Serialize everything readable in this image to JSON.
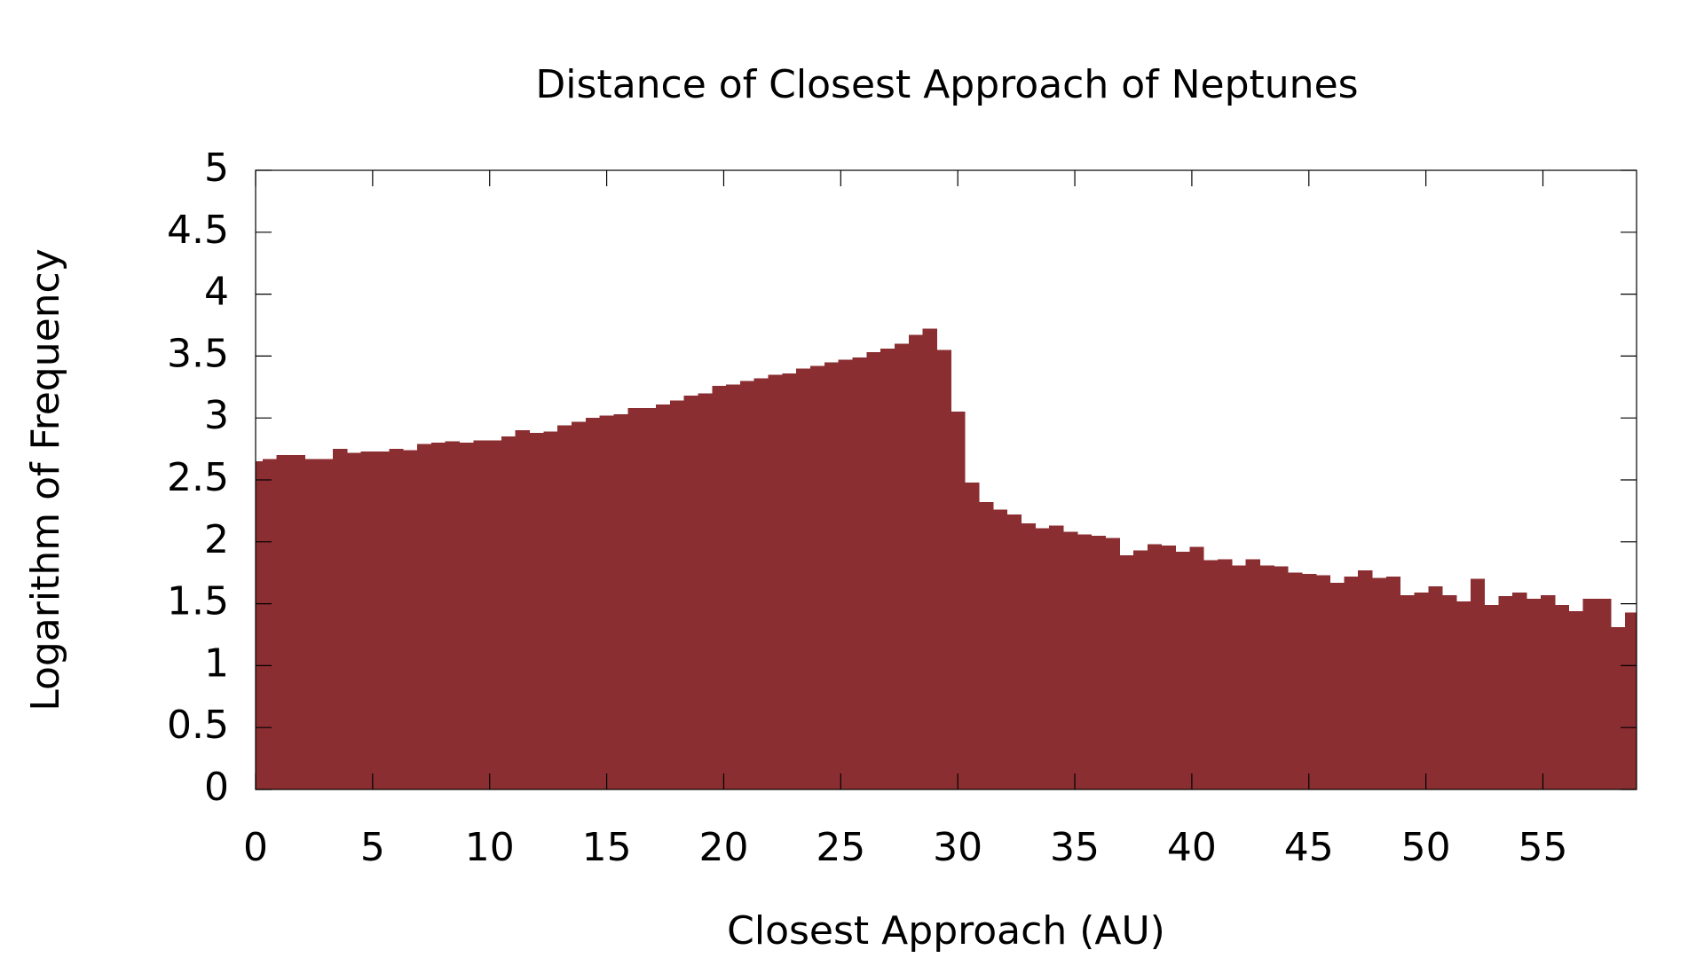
{
  "chart_data": {
    "type": "histogram",
    "title": "Distance of Closest Approach of Neptunes",
    "x_label": "Closest Approach (AU)",
    "y_label": "Logarithm of Frequency",
    "color": "#8b2e32",
    "bins": [
      -0.3,
      0.3,
      0.9,
      1.5,
      2.1,
      2.7,
      3.3,
      3.9,
      4.5,
      5.1,
      5.7,
      6.3,
      6.9,
      7.5,
      8.1,
      8.7,
      9.3,
      9.9,
      10.5,
      11.1,
      11.7,
      12.3,
      12.9,
      13.5,
      14.1,
      14.7,
      15.3,
      15.9,
      16.5,
      17.1,
      17.7,
      18.3,
      18.9,
      19.5,
      20.1,
      20.7,
      21.3,
      21.9,
      22.5,
      23.1,
      23.7,
      24.3,
      24.9,
      25.5,
      26.1,
      26.7,
      27.3,
      27.9,
      28.5,
      29.1,
      29.7,
      30.3,
      30.9,
      31.5,
      32.1,
      32.7,
      33.3,
      33.9,
      34.5,
      35.1,
      35.7,
      36.3,
      36.9,
      37.5,
      38.1,
      38.7,
      39.3,
      39.9,
      40.5,
      41.1,
      41.7,
      42.3,
      42.9,
      43.5,
      44.1,
      44.7,
      45.3,
      45.9,
      46.5,
      47.1,
      47.7,
      48.3,
      48.9,
      49.5,
      50.1,
      50.7,
      51.3,
      51.9,
      52.5,
      53.1,
      53.7,
      54.3,
      54.9,
      55.5,
      56.1,
      56.7,
      57.3,
      57.9,
      58.5,
      59.1
    ],
    "values": [
      2.65,
      2.67,
      2.7,
      2.7,
      2.67,
      2.67,
      2.75,
      2.72,
      2.73,
      2.73,
      2.75,
      2.74,
      2.79,
      2.8,
      2.81,
      2.8,
      2.82,
      2.82,
      2.85,
      2.9,
      2.88,
      2.89,
      2.94,
      2.97,
      3.0,
      3.02,
      3.03,
      3.08,
      3.08,
      3.11,
      3.14,
      3.18,
      3.2,
      3.26,
      3.27,
      3.3,
      3.32,
      3.35,
      3.36,
      3.4,
      3.42,
      3.45,
      3.47,
      3.49,
      3.53,
      3.56,
      3.6,
      3.67,
      3.72,
      3.55,
      3.05,
      2.48,
      2.32,
      2.26,
      2.22,
      2.15,
      2.11,
      2.13,
      2.08,
      2.06,
      2.05,
      2.03,
      1.89,
      1.93,
      1.98,
      1.97,
      1.92,
      1.96,
      1.85,
      1.86,
      1.81,
      1.86,
      1.81,
      1.8,
      1.75,
      1.74,
      1.73,
      1.67,
      1.72,
      1.77,
      1.71,
      1.72,
      1.57,
      1.59,
      1.64,
      1.57,
      1.52,
      1.7,
      1.49,
      1.56,
      1.59,
      1.54,
      1.57,
      1.49,
      1.44,
      1.54,
      1.54,
      1.31,
      1.43
    ],
    "xlim": [
      0,
      59
    ],
    "ylim": [
      0,
      5
    ],
    "xticks": [
      0,
      5,
      10,
      15,
      20,
      25,
      30,
      35,
      40,
      45,
      50,
      55
    ],
    "yticks": [
      0,
      0.5,
      1,
      1.5,
      2,
      2.5,
      3,
      3.5,
      4,
      4.5,
      5
    ],
    "grid": false
  }
}
